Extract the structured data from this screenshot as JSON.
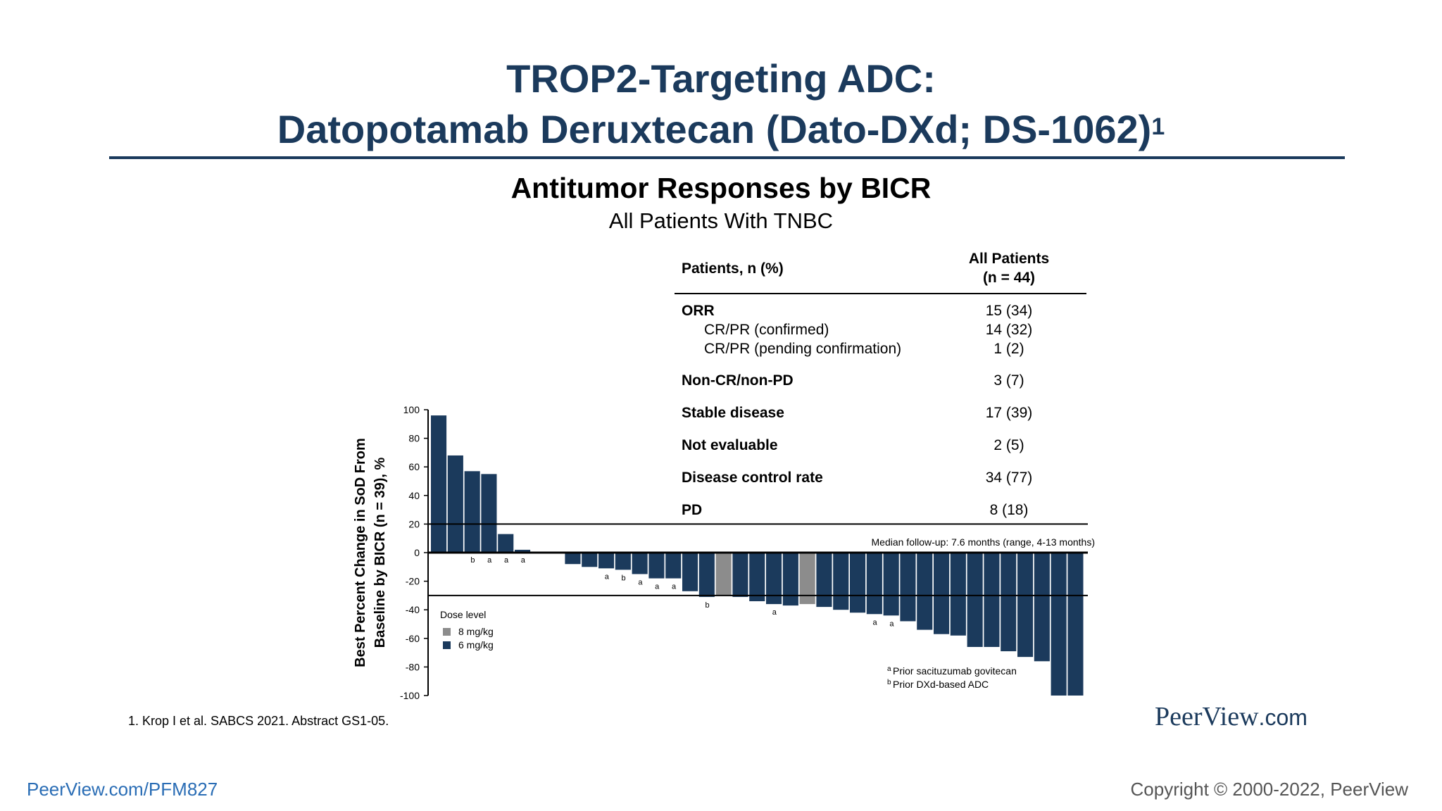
{
  "slide": {
    "title_line1": "TROP2-Targeting ADC:",
    "title_line2": "Datopotamab Deruxtecan (Dato-DXd; DS-1062)",
    "title_sup": "1",
    "subtitle": "Antitumor Responses by BICR",
    "subsubtitle": "All Patients With TNBC",
    "footnote": "1. Krop I et al. SABCS 2021. Abstract GS1-05.",
    "logo_main": "PeerView",
    "logo_suffix": ".com",
    "bottom_left": "PeerView.com/PFM827",
    "bottom_right": "Copyright © 2000-2022, PeerView"
  },
  "table": {
    "header_left": "Patients, n (%)",
    "header_right_1": "All Patients",
    "header_right_2": "(n = 44)",
    "rows": [
      {
        "label": "ORR",
        "value": "15 (34)"
      },
      {
        "label": "CR/PR (confirmed)",
        "value": "14 (32)"
      },
      {
        "label": "CR/PR (pending confirmation)",
        "value": "1 (2)"
      },
      {
        "label": "Non-CR/non-PD",
        "value": "3 (7)"
      },
      {
        "label": "Stable disease",
        "value": "17 (39)"
      },
      {
        "label": "Not evaluable",
        "value": "2 (5)"
      },
      {
        "label": "Disease control rate",
        "value": "34 (77)"
      },
      {
        "label": "PD",
        "value": "8 (18)"
      }
    ]
  },
  "chart_data": {
    "type": "bar",
    "ylabel_line1": "Best Percent Change in SoD From",
    "ylabel_line2": "Baseline by BICR (n = 39), %",
    "ylim": [
      -100,
      100
    ],
    "yticks": [
      100,
      80,
      60,
      40,
      20,
      0,
      -20,
      -40,
      -60,
      -80,
      -100
    ],
    "reference_lines": [
      20,
      -30
    ],
    "median_followup": "Median follow-up: 7.6 months (range, 4-13 months)",
    "legend_title": "Dose level",
    "legend": [
      {
        "label": "8 mg/kg",
        "color": "#8c8c8c"
      },
      {
        "label": "6 mg/kg",
        "color": "#1b3a5c"
      }
    ],
    "footnotes": [
      {
        "mark": "a",
        "text": "Prior sacituzumab govitecan"
      },
      {
        "mark": "b",
        "text": "Prior DXd-based ADC"
      }
    ],
    "values": [
      96,
      68,
      57,
      55,
      13,
      2,
      0,
      0,
      -8,
      -10,
      -11,
      -12,
      -15,
      -18,
      -18,
      -27,
      -31,
      -30,
      -31,
      -34,
      -36,
      -37,
      -36,
      -38,
      -40,
      -42,
      -43,
      -44,
      -48,
      -54,
      -57,
      -58,
      -66,
      -66,
      -69,
      -73,
      -76,
      -100,
      -100
    ],
    "dose": [
      "6",
      "6",
      "6",
      "6",
      "6",
      "6",
      "6",
      "6",
      "6",
      "6",
      "6",
      "6",
      "6",
      "6",
      "6",
      "6",
      "6",
      "8",
      "6",
      "6",
      "6",
      "6",
      "8",
      "6",
      "6",
      "6",
      "6",
      "6",
      "6",
      "6",
      "6",
      "6",
      "6",
      "6",
      "6",
      "6",
      "6",
      "6",
      "6"
    ],
    "marks": [
      "",
      "",
      "b",
      "a",
      "a",
      "a",
      "",
      "",
      "",
      "",
      "a",
      "b",
      "a",
      "a",
      "a",
      "",
      "b",
      "",
      "",
      "",
      "a",
      "",
      "",
      "",
      "",
      "",
      "a",
      "a",
      "",
      "",
      "",
      "",
      "",
      "",
      "",
      "",
      "",
      "",
      ""
    ]
  }
}
